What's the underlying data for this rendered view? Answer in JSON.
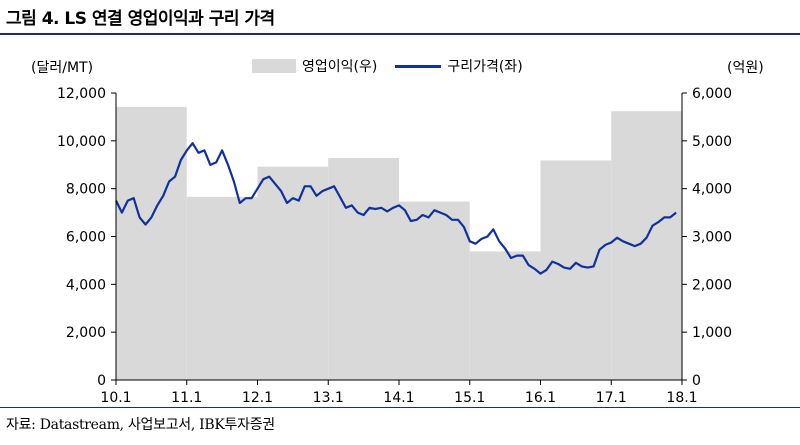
{
  "title": "그림 4. LS 연결 영업이익과 구리 가격",
  "source": "자료: Datastream, 사업보고서, IBK투자증권",
  "chart_data": {
    "type": "bar+line",
    "left_axis_unit": "(달러/MT)",
    "right_axis_unit": "(억원)",
    "left_ylim": [
      0,
      12000
    ],
    "right_ylim": [
      0,
      6000
    ],
    "left_ticks": [
      "0",
      "2,000",
      "4,000",
      "6,000",
      "8,000",
      "10,000",
      "12,000"
    ],
    "right_ticks": [
      "0",
      "1,000",
      "2,000",
      "3,000",
      "4,000",
      "5,000",
      "6,000"
    ],
    "x_ticks": [
      "10.1",
      "11.1",
      "12.1",
      "13.1",
      "14.1",
      "15.1",
      "16.1",
      "17.1",
      "18.1"
    ],
    "grid": false,
    "legend_placement": "top",
    "bar_series": {
      "name": "영업이익(우)",
      "axis": "right",
      "color": "#d9d9d9",
      "periods": [
        "2010",
        "2011",
        "2012",
        "2013",
        "2014",
        "2015",
        "2016",
        "2017"
      ],
      "values": [
        5710,
        3830,
        4460,
        4640,
        3730,
        2690,
        4590,
        5620
      ]
    },
    "line_series": {
      "name": "구리가격(좌)",
      "axis": "left",
      "color": "#10329a",
      "points": [
        [
          "2010-01",
          7500
        ],
        [
          "2010-02",
          7000
        ],
        [
          "2010-03",
          7500
        ],
        [
          "2010-04",
          7600
        ],
        [
          "2010-05",
          6800
        ],
        [
          "2010-06",
          6500
        ],
        [
          "2010-07",
          6800
        ],
        [
          "2010-08",
          7300
        ],
        [
          "2010-09",
          7700
        ],
        [
          "2010-10",
          8300
        ],
        [
          "2010-11",
          8500
        ],
        [
          "2010-12",
          9200
        ],
        [
          "2011-01",
          9600
        ],
        [
          "2011-02",
          9900
        ],
        [
          "2011-03",
          9500
        ],
        [
          "2011-04",
          9600
        ],
        [
          "2011-05",
          9000
        ],
        [
          "2011-06",
          9100
        ],
        [
          "2011-07",
          9600
        ],
        [
          "2011-08",
          9000
        ],
        [
          "2011-09",
          8300
        ],
        [
          "2011-10",
          7400
        ],
        [
          "2011-11",
          7600
        ],
        [
          "2011-12",
          7600
        ],
        [
          "2012-01",
          8000
        ],
        [
          "2012-02",
          8400
        ],
        [
          "2012-03",
          8500
        ],
        [
          "2012-04",
          8200
        ],
        [
          "2012-05",
          7900
        ],
        [
          "2012-06",
          7400
        ],
        [
          "2012-07",
          7600
        ],
        [
          "2012-08",
          7500
        ],
        [
          "2012-09",
          8100
        ],
        [
          "2012-10",
          8100
        ],
        [
          "2012-11",
          7700
        ],
        [
          "2012-12",
          7900
        ],
        [
          "2013-01",
          8000
        ],
        [
          "2013-02",
          8100
        ],
        [
          "2013-03",
          7650
        ],
        [
          "2013-04",
          7200
        ],
        [
          "2013-05",
          7300
        ],
        [
          "2013-06",
          7000
        ],
        [
          "2013-07",
          6900
        ],
        [
          "2013-08",
          7200
        ],
        [
          "2013-09",
          7150
        ],
        [
          "2013-10",
          7200
        ],
        [
          "2013-11",
          7050
        ],
        [
          "2013-12",
          7200
        ],
        [
          "2014-01",
          7300
        ],
        [
          "2014-02",
          7100
        ],
        [
          "2014-03",
          6650
        ],
        [
          "2014-04",
          6700
        ],
        [
          "2014-05",
          6900
        ],
        [
          "2014-06",
          6800
        ],
        [
          "2014-07",
          7100
        ],
        [
          "2014-08",
          7000
        ],
        [
          "2014-09",
          6900
        ],
        [
          "2014-10",
          6700
        ],
        [
          "2014-11",
          6700
        ],
        [
          "2014-12",
          6400
        ],
        [
          "2015-01",
          5800
        ],
        [
          "2015-02",
          5700
        ],
        [
          "2015-03",
          5900
        ],
        [
          "2015-04",
          6000
        ],
        [
          "2015-05",
          6300
        ],
        [
          "2015-06",
          5800
        ],
        [
          "2015-07",
          5500
        ],
        [
          "2015-08",
          5100
        ],
        [
          "2015-09",
          5200
        ],
        [
          "2015-10",
          5200
        ],
        [
          "2015-11",
          4800
        ],
        [
          "2015-12",
          4650
        ],
        [
          "2016-01",
          4450
        ],
        [
          "2016-02",
          4600
        ],
        [
          "2016-03",
          4950
        ],
        [
          "2016-04",
          4850
        ],
        [
          "2016-05",
          4700
        ],
        [
          "2016-06",
          4650
        ],
        [
          "2016-07",
          4900
        ],
        [
          "2016-08",
          4750
        ],
        [
          "2016-09",
          4700
        ],
        [
          "2016-10",
          4750
        ],
        [
          "2016-11",
          5450
        ],
        [
          "2016-12",
          5650
        ],
        [
          "2017-01",
          5750
        ],
        [
          "2017-02",
          5950
        ],
        [
          "2017-03",
          5800
        ],
        [
          "2017-04",
          5700
        ],
        [
          "2017-05",
          5600
        ],
        [
          "2017-06",
          5700
        ],
        [
          "2017-07",
          5950
        ],
        [
          "2017-08",
          6450
        ],
        [
          "2017-09",
          6600
        ],
        [
          "2017-10",
          6800
        ],
        [
          "2017-11",
          6800
        ],
        [
          "2017-12",
          7000
        ]
      ]
    }
  }
}
